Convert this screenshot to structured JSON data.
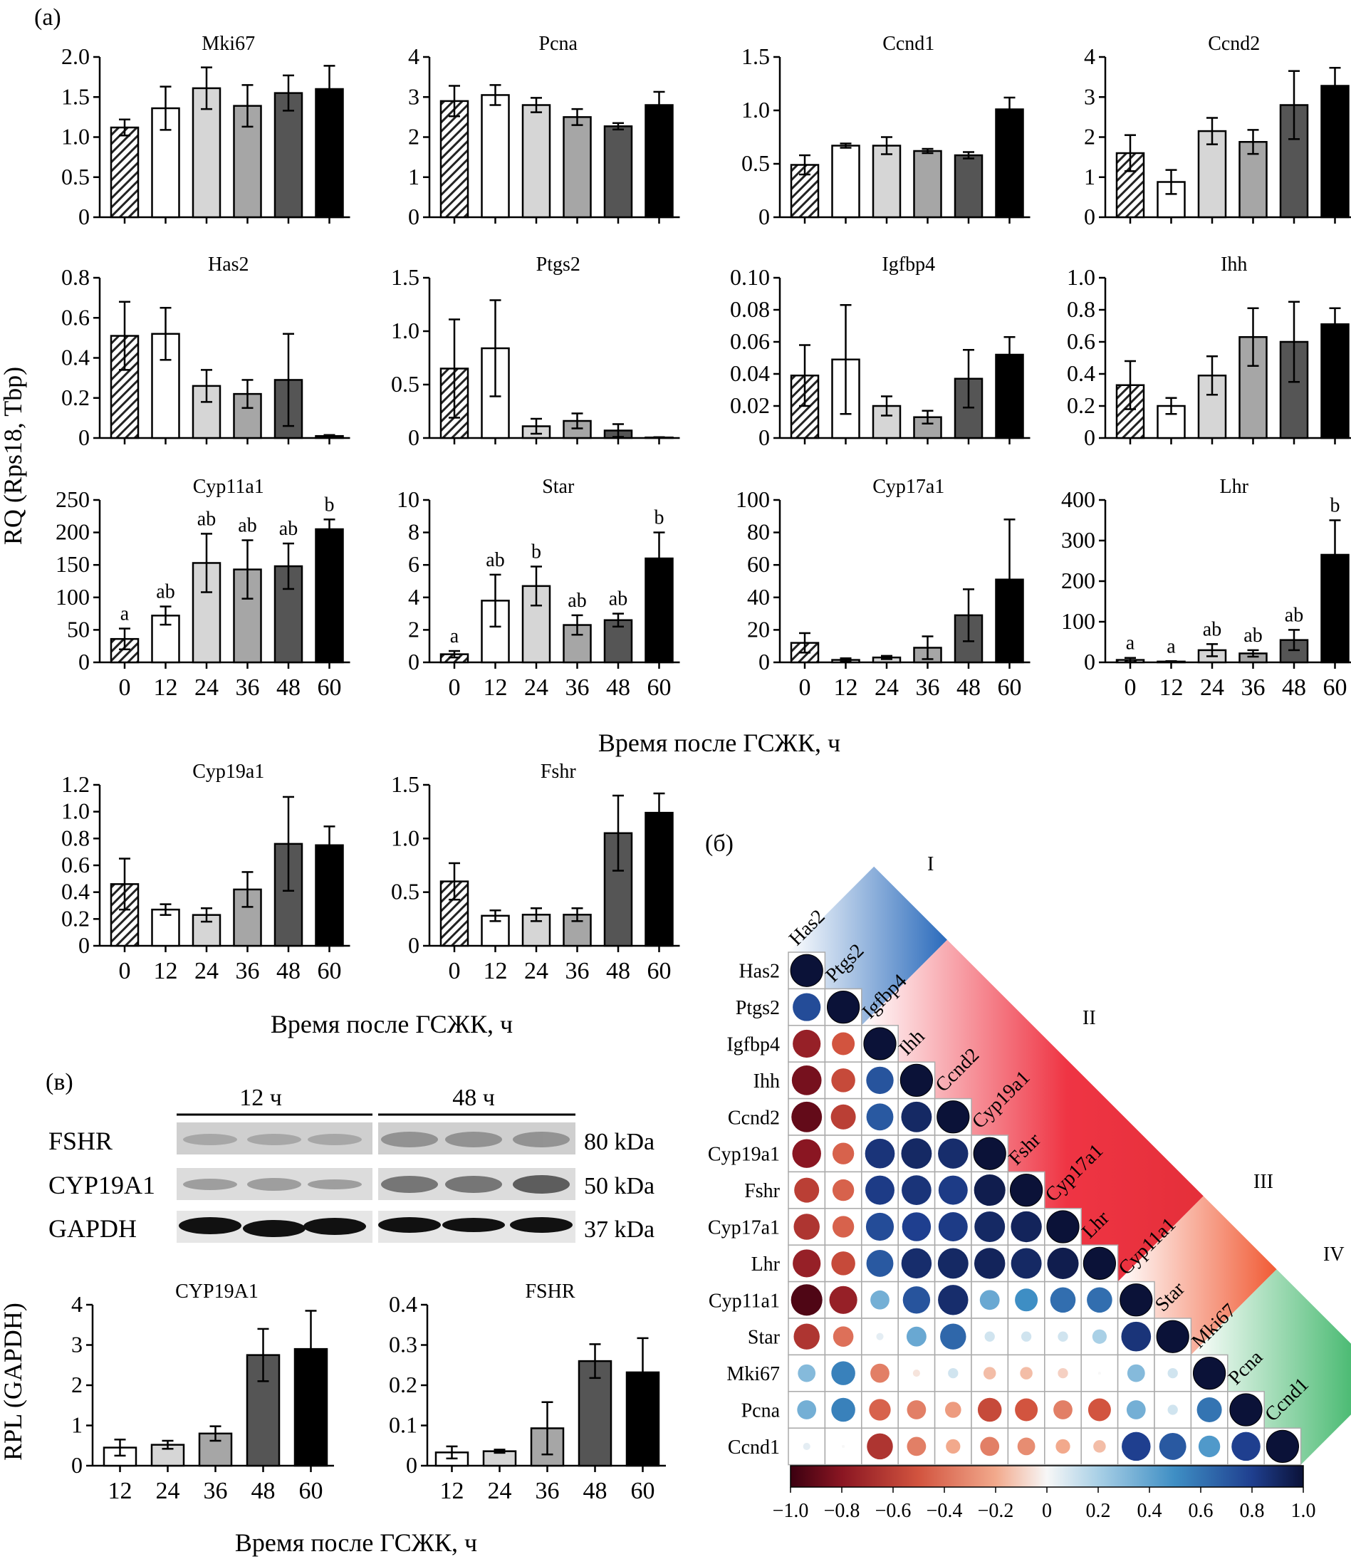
{
  "panel_labels": {
    "a": "(а)",
    "b": "(б)",
    "v": "(в)"
  },
  "xaxis_label": "Время после ГСЖК, ч",
  "ylabel_rq": "RQ (Rps18, Tbp)",
  "ylabel_rpl": "RPL (GAPDH)",
  "colors": {
    "t0": "hatched",
    "t12": "#ffffff",
    "t24": "#d6d6d6",
    "t36": "#a6a6a6",
    "t48": "#555555",
    "t60": "#000000"
  },
  "chart_data": [
    {
      "type": "bar",
      "title": "Mki67",
      "categories": [
        "0",
        "12",
        "24",
        "36",
        "48",
        "60"
      ],
      "values": [
        1.12,
        1.36,
        1.61,
        1.39,
        1.55,
        1.6
      ],
      "errors": [
        0.1,
        0.27,
        0.26,
        0.26,
        0.22,
        0.29
      ],
      "ylim": [
        0,
        2.0
      ],
      "yticks": [
        "0",
        "0.5",
        "1.0",
        "1.5",
        "2.0"
      ],
      "letters": [
        "",
        "",
        "",
        "",
        "",
        ""
      ]
    },
    {
      "type": "bar",
      "title": "Pcna",
      "categories": [
        "0",
        "12",
        "24",
        "36",
        "48",
        "60"
      ],
      "values": [
        2.9,
        3.05,
        2.8,
        2.5,
        2.27,
        2.8
      ],
      "errors": [
        0.38,
        0.25,
        0.18,
        0.2,
        0.08,
        0.33
      ],
      "ylim": [
        0,
        4
      ],
      "yticks": [
        "0",
        "1",
        "2",
        "3",
        "4"
      ],
      "letters": [
        "",
        "",
        "",
        "",
        "",
        ""
      ]
    },
    {
      "type": "bar",
      "title": "Ccnd1",
      "categories": [
        "0",
        "12",
        "24",
        "36",
        "48",
        "60"
      ],
      "values": [
        0.49,
        0.67,
        0.67,
        0.62,
        0.58,
        1.01
      ],
      "errors": [
        0.09,
        0.02,
        0.08,
        0.02,
        0.03,
        0.11
      ],
      "ylim": [
        0,
        1.5
      ],
      "yticks": [
        "0",
        "0.5",
        "1.0",
        "1.5"
      ],
      "letters": [
        "",
        "",
        "",
        "",
        "",
        ""
      ]
    },
    {
      "type": "bar",
      "title": "Ccnd2",
      "categories": [
        "0",
        "12",
        "24",
        "36",
        "48",
        "60"
      ],
      "values": [
        1.6,
        0.88,
        2.15,
        1.88,
        2.8,
        3.28
      ],
      "errors": [
        0.45,
        0.3,
        0.33,
        0.3,
        0.85,
        0.45
      ],
      "ylim": [
        0,
        4
      ],
      "yticks": [
        "0",
        "1",
        "2",
        "3",
        "4"
      ],
      "letters": [
        "",
        "",
        "",
        "",
        "",
        ""
      ]
    },
    {
      "type": "bar",
      "title": "Has2",
      "categories": [
        "0",
        "12",
        "24",
        "36",
        "48",
        "60"
      ],
      "values": [
        0.51,
        0.52,
        0.26,
        0.22,
        0.29,
        0.01
      ],
      "errors": [
        0.17,
        0.13,
        0.08,
        0.07,
        0.23,
        0.005
      ],
      "ylim": [
        0,
        0.8
      ],
      "yticks": [
        "0",
        "0.2",
        "0.4",
        "0.6",
        "0.8"
      ],
      "letters": [
        "",
        "",
        "",
        "",
        "",
        ""
      ]
    },
    {
      "type": "bar",
      "title": "Ptgs2",
      "categories": [
        "0",
        "12",
        "24",
        "36",
        "48",
        "60"
      ],
      "values": [
        0.65,
        0.84,
        0.11,
        0.16,
        0.07,
        0.005
      ],
      "errors": [
        0.46,
        0.45,
        0.07,
        0.07,
        0.06,
        0.003
      ],
      "ylim": [
        0,
        1.5
      ],
      "yticks": [
        "0",
        "0.5",
        "1.0",
        "1.5"
      ],
      "letters": [
        "",
        "",
        "",
        "",
        "",
        ""
      ]
    },
    {
      "type": "bar",
      "title": "Igfbp4",
      "categories": [
        "0",
        "12",
        "24",
        "36",
        "48",
        "60"
      ],
      "values": [
        0.039,
        0.049,
        0.02,
        0.013,
        0.037,
        0.052
      ],
      "errors": [
        0.019,
        0.034,
        0.006,
        0.004,
        0.018,
        0.011
      ],
      "ylim": [
        0,
        0.1
      ],
      "yticks": [
        "0",
        "0.02",
        "0.04",
        "0.06",
        "0.08",
        "0.10"
      ],
      "letters": [
        "",
        "",
        "",
        "",
        "",
        ""
      ]
    },
    {
      "type": "bar",
      "title": "Ihh",
      "categories": [
        "0",
        "12",
        "24",
        "36",
        "48",
        "60"
      ],
      "values": [
        0.33,
        0.2,
        0.39,
        0.63,
        0.6,
        0.71
      ],
      "errors": [
        0.15,
        0.05,
        0.12,
        0.18,
        0.25,
        0.1
      ],
      "ylim": [
        0,
        1.0
      ],
      "yticks": [
        "0",
        "0.2",
        "0.4",
        "0.6",
        "0.8",
        "1.0"
      ],
      "letters": [
        "",
        "",
        "",
        "",
        "",
        ""
      ]
    },
    {
      "type": "bar",
      "title": "Cyp11a1",
      "categories": [
        "0",
        "12",
        "24",
        "36",
        "48",
        "60"
      ],
      "values": [
        36,
        72,
        153,
        143,
        148,
        205
      ],
      "errors": [
        16,
        14,
        45,
        45,
        35,
        15
      ],
      "ylim": [
        0,
        250
      ],
      "yticks": [
        "0",
        "50",
        "100",
        "150",
        "200",
        "250"
      ],
      "letters": [
        "a",
        "ab",
        "ab",
        "ab",
        "ab",
        "b"
      ]
    },
    {
      "type": "bar",
      "title": "Star",
      "categories": [
        "0",
        "12",
        "24",
        "36",
        "48",
        "60"
      ],
      "values": [
        0.5,
        3.8,
        4.7,
        2.3,
        2.6,
        6.4
      ],
      "errors": [
        0.2,
        1.6,
        1.2,
        0.6,
        0.4,
        1.6
      ],
      "ylim": [
        0,
        10
      ],
      "yticks": [
        "0",
        "2",
        "4",
        "6",
        "8",
        "10"
      ],
      "letters": [
        "a",
        "ab",
        "b",
        "ab",
        "ab",
        "b"
      ]
    },
    {
      "type": "bar",
      "title": "Cyp17a1",
      "categories": [
        "0",
        "12",
        "24",
        "36",
        "48",
        "60"
      ],
      "values": [
        12,
        1.5,
        3,
        9,
        29,
        51
      ],
      "errors": [
        6,
        1,
        1,
        7,
        16,
        37
      ],
      "ylim": [
        0,
        100
      ],
      "yticks": [
        "0",
        "20",
        "40",
        "60",
        "80",
        "100"
      ],
      "letters": [
        "",
        "",
        "",
        "",
        "",
        ""
      ]
    },
    {
      "type": "bar",
      "title": "Lhr",
      "categories": [
        "0",
        "12",
        "24",
        "36",
        "48",
        "60"
      ],
      "values": [
        6,
        2,
        30,
        22,
        55,
        265
      ],
      "errors": [
        5,
        1,
        15,
        8,
        25,
        85
      ],
      "ylim": [
        0,
        400
      ],
      "yticks": [
        "0",
        "100",
        "200",
        "300",
        "400"
      ],
      "letters": [
        "a",
        "a",
        "ab",
        "ab",
        "ab",
        "b"
      ]
    },
    {
      "type": "bar",
      "title": "Cyp19a1",
      "categories": [
        "0",
        "12",
        "24",
        "36",
        "48",
        "60"
      ],
      "values": [
        0.46,
        0.27,
        0.23,
        0.42,
        0.76,
        0.75
      ],
      "errors": [
        0.19,
        0.04,
        0.05,
        0.13,
        0.35,
        0.14
      ],
      "ylim": [
        0,
        1.2
      ],
      "yticks": [
        "0",
        "0.2",
        "0.4",
        "0.6",
        "0.8",
        "1.0",
        "1.2"
      ],
      "letters": [
        "",
        "",
        "",
        "",
        "",
        ""
      ]
    },
    {
      "type": "bar",
      "title": "Fshr",
      "categories": [
        "0",
        "12",
        "24",
        "36",
        "48",
        "60"
      ],
      "values": [
        0.6,
        0.28,
        0.29,
        0.29,
        1.05,
        1.24
      ],
      "errors": [
        0.17,
        0.05,
        0.06,
        0.06,
        0.35,
        0.18
      ],
      "ylim": [
        0,
        1.5
      ],
      "yticks": [
        "0",
        "0.5",
        "1.0",
        "1.5"
      ],
      "letters": [
        "",
        "",
        "",
        "",
        "",
        ""
      ]
    },
    {
      "type": "bar",
      "title": "CYP19A1",
      "categories": [
        "12",
        "24",
        "36",
        "48",
        "60"
      ],
      "values": [
        0.45,
        0.52,
        0.8,
        2.75,
        2.9
      ],
      "errors": [
        0.2,
        0.1,
        0.18,
        0.65,
        0.95
      ],
      "ylim": [
        0,
        4
      ],
      "yticks": [
        "0",
        "1",
        "2",
        "3",
        "4"
      ],
      "letters": [
        "",
        "",
        "",
        "",
        ""
      ]
    },
    {
      "type": "bar",
      "title": "FSHR",
      "categories": [
        "12",
        "24",
        "36",
        "48",
        "60"
      ],
      "values": [
        0.033,
        0.036,
        0.093,
        0.26,
        0.232
      ],
      "errors": [
        0.015,
        0.004,
        0.065,
        0.042,
        0.085
      ],
      "ylim": [
        0,
        0.4
      ],
      "yticks": [
        "0",
        "0.1",
        "0.2",
        "0.3",
        "0.4"
      ],
      "letters": [
        "",
        "",
        "",
        "",
        ""
      ]
    },
    {
      "type": "heatmap",
      "genes": [
        "Has2",
        "Ptgs2",
        "Igfbp4",
        "Ihh",
        "Ccnd2",
        "Cyp19a1",
        "Fshr",
        "Cyp17a1",
        "Lhr",
        "Cyp11a1",
        "Star",
        "Mki67",
        "Pcna",
        "Ccnd1"
      ],
      "matrix": [
        [
          1.0
        ],
        [
          0.75,
          1.0
        ],
        [
          -0.75,
          -0.5,
          1.0
        ],
        [
          -0.85,
          -0.55,
          0.72,
          1.0
        ],
        [
          -0.9,
          -0.6,
          0.7,
          0.9,
          1.0
        ],
        [
          -0.8,
          -0.45,
          0.85,
          0.9,
          0.88,
          1.0
        ],
        [
          -0.6,
          -0.45,
          0.82,
          0.85,
          0.82,
          0.95,
          1.0
        ],
        [
          -0.65,
          -0.45,
          0.75,
          0.8,
          0.82,
          0.9,
          0.92,
          1.0
        ],
        [
          -0.75,
          -0.55,
          0.7,
          0.88,
          0.9,
          0.92,
          0.9,
          0.95,
          1.0
        ],
        [
          -0.95,
          -0.75,
          0.35,
          0.72,
          0.88,
          0.38,
          0.5,
          0.62,
          0.62,
          1.0
        ],
        [
          -0.65,
          -0.4,
          0.05,
          0.38,
          0.65,
          0.1,
          0.1,
          0.1,
          0.2,
          0.85,
          1.0
        ],
        [
          0.3,
          0.55,
          -0.35,
          -0.05,
          0.1,
          -0.15,
          -0.15,
          -0.1,
          0.0,
          0.3,
          0.1,
          1.0
        ],
        [
          0.35,
          0.55,
          -0.45,
          -0.35,
          -0.25,
          -0.55,
          -0.5,
          -0.35,
          -0.5,
          0.35,
          0.1,
          0.6,
          1.0
        ],
        [
          0.05,
          0.0,
          -0.65,
          -0.35,
          -0.2,
          -0.35,
          -0.3,
          -0.2,
          -0.15,
          0.8,
          0.7,
          0.45,
          0.8,
          1.0
        ]
      ],
      "clusters": [
        "I",
        "II",
        "III",
        "IV"
      ],
      "colorbar_ticks": [
        "−1.0",
        "−0.8",
        "−0.6",
        "−0.4",
        "−0.2",
        "0",
        "0.2",
        "0.4",
        "0.6",
        "0.8",
        "1.0"
      ]
    }
  ],
  "blot": {
    "groups": [
      "12 ч",
      "48 ч"
    ],
    "rows": [
      {
        "name": "FSHR",
        "size": "80 kDa"
      },
      {
        "name": "CYP19A1",
        "size": "50 kDa"
      },
      {
        "name": "GAPDH",
        "size": "37 kDa"
      }
    ]
  },
  "blot_xaxis_label": "Время после ГСЖК, ч"
}
